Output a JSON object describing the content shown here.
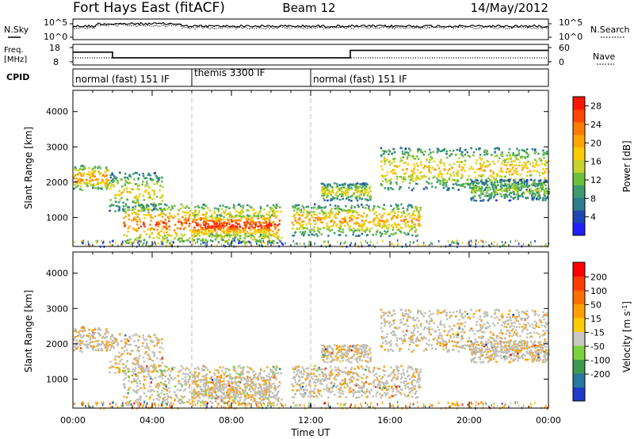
{
  "header": {
    "station": "Fort Hays East (fitACF)",
    "beam": "Beam 12",
    "date": "14/May/2012"
  },
  "noise_panel": {
    "left_label": "N.Sky",
    "left_ticks": [
      "10^5",
      "10^0"
    ],
    "right_label": "N.Search",
    "right_ticks": [
      "10^5",
      "10^0"
    ]
  },
  "freq_panel": {
    "left_label_line1": "Freq.",
    "left_label_line2": "[MHz]",
    "left_ticks": [
      "18",
      "8"
    ],
    "right_label": "Nave",
    "right_ticks": [
      "60",
      "0"
    ],
    "freq_steps": [
      {
        "t_start": 0,
        "t_end": 2,
        "value": 13.5
      },
      {
        "t_start": 2,
        "t_end": 14,
        "value": 10.2
      },
      {
        "t_start": 14,
        "t_end": 24,
        "value": 14.5
      }
    ]
  },
  "cpid_panel": {
    "label": "CPID",
    "segments": [
      {
        "t_start": 0,
        "t_end": 6,
        "label": "normal (fast) 151 IF"
      },
      {
        "t_start": 6,
        "t_end": 12,
        "label": "themis 3300 IF"
      },
      {
        "t_start": 12,
        "t_end": 24,
        "label": "normal (fast) 151 IF"
      }
    ]
  },
  "chart_data": [
    {
      "type": "heatmap",
      "name": "power",
      "ylabel": "Slant Range [km]",
      "ylim": [
        180,
        4600
      ],
      "yticks": [
        "1000",
        "2000",
        "3000",
        "4000"
      ],
      "colorbar": {
        "label": "Power [dB]",
        "ticks": [
          "4",
          "8",
          "12",
          "16",
          "20",
          "24",
          "28"
        ],
        "range": [
          0,
          30
        ],
        "colors": [
          "#2020ff",
          "#1e46b4",
          "#2e7d8c",
          "#3c9a6e",
          "#6cbf3c",
          "#c8d22a",
          "#ffcc00",
          "#ffa500",
          "#ff7a00",
          "#ff4500",
          "#ff1400"
        ]
      },
      "scatter_regions": [
        {
          "t_start": 0.0,
          "t_end": 1.8,
          "r_low": 1800,
          "r_high": 2500,
          "power_core": 24
        },
        {
          "t_start": 1.8,
          "t_end": 4.5,
          "r_low": 1200,
          "r_high": 2300,
          "power_core": 18
        },
        {
          "t_start": 2.5,
          "t_end": 10.5,
          "r_low": 300,
          "r_high": 1400,
          "power_core": 26
        },
        {
          "t_start": 6.0,
          "t_end": 10.0,
          "r_low": 500,
          "r_high": 1100,
          "power_core": 30
        },
        {
          "t_start": 11.0,
          "t_end": 17.5,
          "r_low": 500,
          "r_high": 1400,
          "power_core": 22
        },
        {
          "t_start": 12.5,
          "t_end": 15.0,
          "r_low": 1500,
          "r_high": 2000,
          "power_core": 18
        },
        {
          "t_start": 15.5,
          "t_end": 24.0,
          "r_low": 1800,
          "r_high": 3000,
          "power_core": 20
        },
        {
          "t_start": 20.0,
          "t_end": 24.0,
          "r_low": 1500,
          "r_high": 2100,
          "power_core": 14
        }
      ]
    },
    {
      "type": "heatmap",
      "name": "velocity",
      "xlabel": "Time UT",
      "ylabel": "Slant Range [km]",
      "xlim": [
        0,
        24
      ],
      "xticks": [
        "00:00",
        "04:00",
        "08:00",
        "12:00",
        "16:00",
        "20:00",
        "00:00"
      ],
      "ylim": [
        180,
        4600
      ],
      "yticks": [
        "1000",
        "2000",
        "3000",
        "4000"
      ],
      "colorbar": {
        "label_main": "Velocity [m s",
        "label_sup": "-1",
        "label_end": "]",
        "ticks": [
          "200",
          "100",
          "50",
          "15",
          "-15",
          "-50",
          "-100",
          "-200"
        ],
        "colors": [
          "#1e3cc8",
          "#2878a0",
          "#3c9a50",
          "#7cd23c",
          "#c8c8c0",
          "#ffcc00",
          "#ffa000",
          "#ff6e00",
          "#ff3c00",
          "#ff0000"
        ]
      },
      "ground_scatter_color": "#c0c0b8"
    }
  ]
}
